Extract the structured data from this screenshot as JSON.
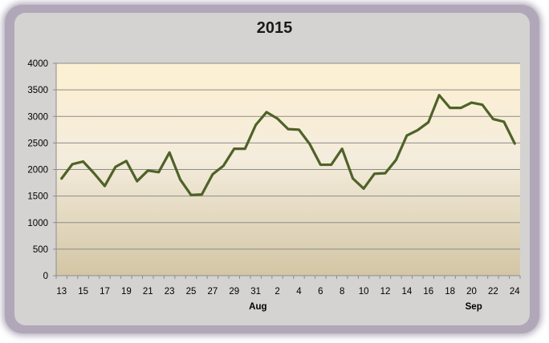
{
  "chart_data": {
    "type": "line",
    "title": "2015",
    "xlabel": "",
    "ylabel": "",
    "ylim": [
      0,
      4000
    ],
    "yticks": [
      0,
      500,
      1000,
      1500,
      2000,
      2500,
      3000,
      3500,
      4000
    ],
    "xtick_labels": [
      "13",
      "15",
      "17",
      "19",
      "21",
      "23",
      "25",
      "27",
      "29",
      "31",
      "2",
      "4",
      "6",
      "8",
      "10",
      "12",
      "14",
      "16",
      "18",
      "20",
      "22",
      "24"
    ],
    "month_labels": [
      "Aug",
      "Sep"
    ],
    "grid": true,
    "legend": "none",
    "line_color": "#4f6228",
    "series": [
      {
        "values": [
          1830,
          2100,
          2150,
          1930,
          1690,
          2050,
          2160,
          1780,
          1980,
          1950,
          2320,
          1810,
          1520,
          1530,
          1910,
          2070,
          2390,
          2390,
          2840,
          3080,
          2960,
          2760,
          2750,
          2480,
          2090,
          2090,
          2390,
          1830,
          1640,
          1920,
          1930,
          2180,
          2640,
          2740,
          2890,
          3400,
          3160,
          3160,
          3260,
          3220,
          2950,
          2900,
          2490
        ]
      }
    ]
  }
}
